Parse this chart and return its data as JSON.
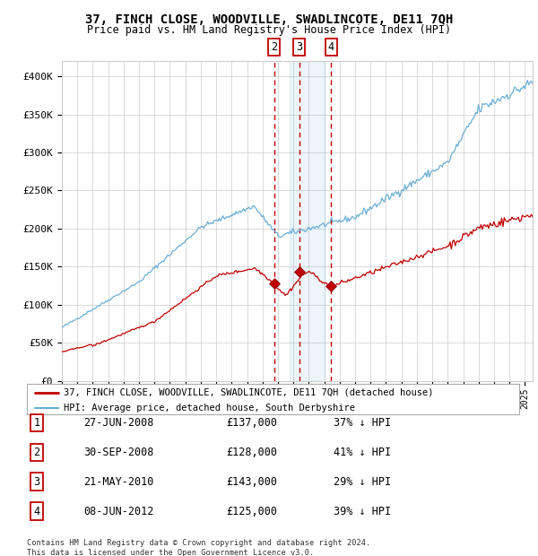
{
  "title": "37, FINCH CLOSE, WOODVILLE, SWADLINCOTE, DE11 7QH",
  "subtitle": "Price paid vs. HM Land Registry's House Price Index (HPI)",
  "ylim": [
    0,
    420000
  ],
  "yticks": [
    0,
    50000,
    100000,
    150000,
    200000,
    250000,
    300000,
    350000,
    400000
  ],
  "ytick_labels": [
    "£0",
    "£50K",
    "£100K",
    "£150K",
    "£200K",
    "£250K",
    "£300K",
    "£350K",
    "£400K"
  ],
  "xlim_start": 1995.0,
  "xlim_end": 2025.5,
  "hpi_color": "#6aaed6",
  "price_color": "#c00000",
  "background_color": "#ffffff",
  "grid_color": "#cccccc",
  "transactions": [
    {
      "num": 1,
      "date_label": "27-JUN-2008",
      "date_x": 2008.49,
      "price": 137000,
      "pct": "37%"
    },
    {
      "num": 2,
      "date_label": "30-SEP-2008",
      "date_x": 2008.75,
      "price": 128000,
      "pct": "41%"
    },
    {
      "num": 3,
      "date_label": "21-MAY-2010",
      "date_x": 2010.39,
      "price": 143000,
      "pct": "29%"
    },
    {
      "num": 4,
      "date_label": "08-JUN-2012",
      "date_x": 2012.44,
      "price": 125000,
      "pct": "39%"
    }
  ],
  "shade_x_start": 2009.75,
  "shade_x_end": 2012.0,
  "footnote": "Contains HM Land Registry data © Crown copyright and database right 2024.\nThis data is licensed under the Open Government Licence v3.0.",
  "legend_property_label": "37, FINCH CLOSE, WOODVILLE, SWADLINCOTE, DE11 7QH (detached house)",
  "legend_hpi_label": "HPI: Average price, detached house, South Derbyshire"
}
